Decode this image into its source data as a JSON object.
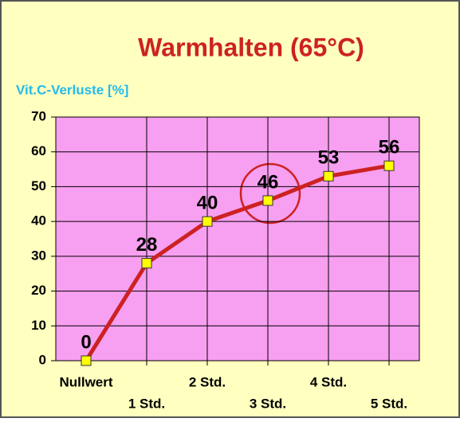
{
  "chart_data": {
    "type": "line",
    "title": "Warmhalten (65°C)",
    "y_label": "Vit.C-Verluste [%]",
    "categories": [
      "Nullwert",
      "1 Std.",
      "2 Std.",
      "3 Std.",
      "4 Std.",
      "5 Std."
    ],
    "values": [
      0,
      28,
      40,
      46,
      53,
      56
    ],
    "color": "#cc2222",
    "marker_color": "#ffff00",
    "ylim": [
      0,
      70
    ],
    "yticks": [
      0,
      10,
      20,
      30,
      40,
      50,
      60,
      70
    ],
    "grid": true
  }
}
